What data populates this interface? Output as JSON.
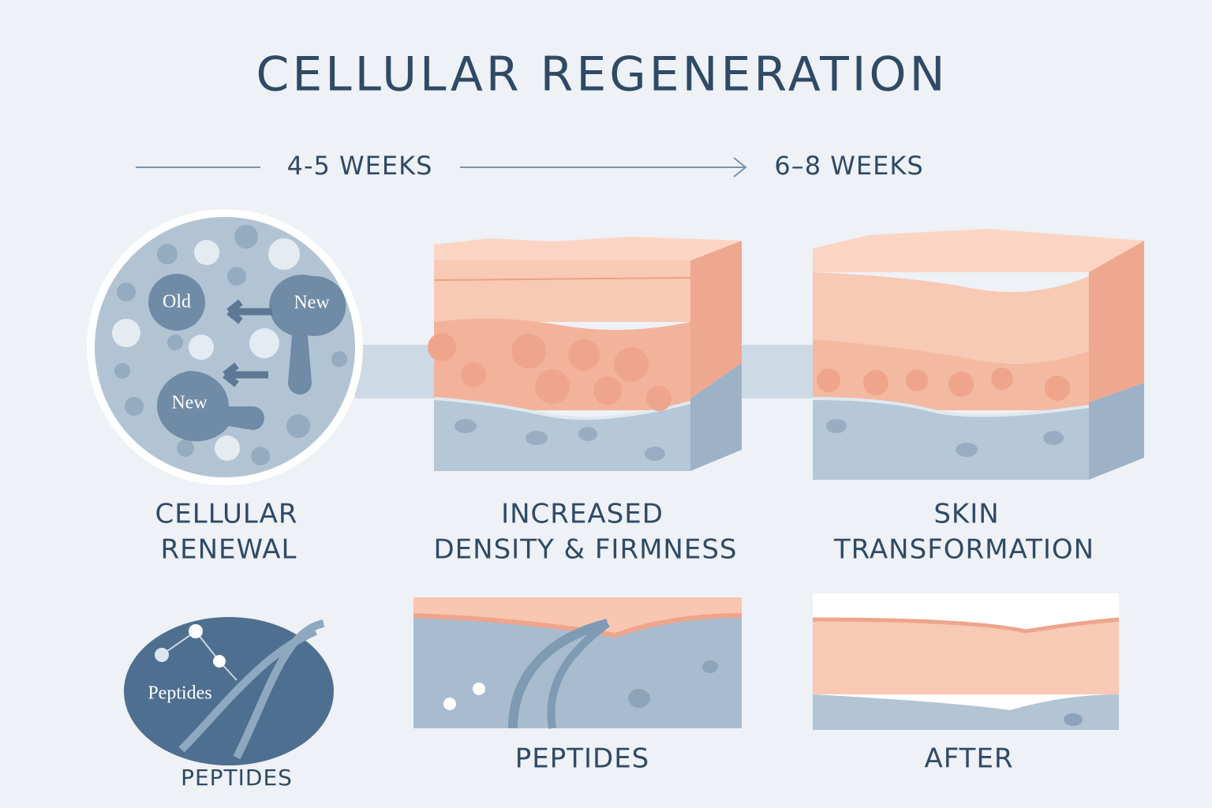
{
  "title": "CELLULAR REGENERATION",
  "timeline": {
    "start": "4-5 WEEKS",
    "end": "6–8 WEEKS"
  },
  "panels": [
    {
      "label_lines": [
        "CELLULAR",
        "RENEWAL"
      ],
      "cells": [
        "Old",
        "New",
        "New"
      ]
    },
    {
      "label_lines": [
        "INCREASED",
        "DENSITY & FIRMNESS"
      ]
    },
    {
      "label_lines": [
        "SKIN",
        "TRANSFORMATION"
      ]
    }
  ],
  "bottom": [
    {
      "inner": "Peptides",
      "label": "PEPTIDES"
    },
    {
      "label": "PEPTIDES"
    },
    {
      "label": "AFTER"
    }
  ]
}
